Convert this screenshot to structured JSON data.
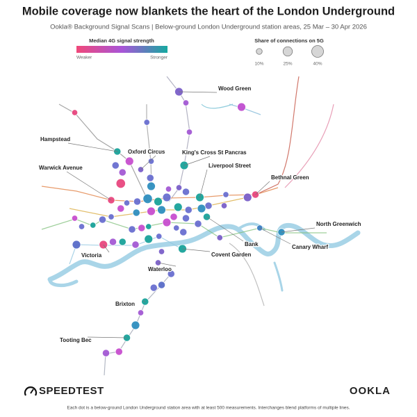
{
  "title": "Mobile coverage now blankets the heart of the London Underground",
  "subtitle": "Ookla® Background Signal Scans | Below-ground London Underground station areas, 25 Mar – 30 Apr 2026",
  "legend_color": {
    "title": "Median 4G signal strength",
    "low_label": "Weaker",
    "high_label": "Stronger",
    "colors": [
      "#f0487a",
      "#a855d8",
      "#16a9a0"
    ]
  },
  "legend_size": {
    "title": "Share of connections on 5G",
    "items": [
      {
        "value": 10,
        "label": "10%"
      },
      {
        "value": 25,
        "label": "25%"
      },
      {
        "value": 40,
        "label": "40%"
      }
    ]
  },
  "station_labels": [
    {
      "text": "Wood Green",
      "lon": -0.142,
      "lat": 51.644
    },
    {
      "text": "Hampstead",
      "lon": -0.213,
      "lat": 51.601
    },
    {
      "text": "Oxford Circus",
      "lon": -0.186,
      "lat": 51.588
    },
    {
      "text": "King's Cross St Pancras",
      "lon": -0.136,
      "lat": 51.591
    },
    {
      "text": "Liverpool Street",
      "lon": -0.118,
      "lat": 51.568
    },
    {
      "text": "Warwick Avenue",
      "lon": -0.22,
      "lat": 51.566
    },
    {
      "text": "Bethnal Green",
      "lon": -0.054,
      "lat": 51.57
    },
    {
      "text": "North Greenwich",
      "lon": -0.024,
      "lat": 51.543
    },
    {
      "text": "Bank",
      "lon": -0.11,
      "lat": 51.554
    },
    {
      "text": "Canary Wharf",
      "lon": -0.049,
      "lat": 51.546
    },
    {
      "text": "Victoria",
      "lon": -0.229,
      "lat": 51.534
    },
    {
      "text": "Covent Garden",
      "lon": -0.138,
      "lat": 51.531
    },
    {
      "text": "Waterloo",
      "lon": -0.166,
      "lat": 51.521
    },
    {
      "text": "Brixton",
      "lon": -0.181,
      "lat": 51.493
    },
    {
      "text": "Tooting Bec",
      "lon": -0.202,
      "lat": 51.467
    }
  ],
  "dots": [
    {
      "lon": -0.142,
      "lat": 51.644,
      "share": 20,
      "color": "#7b5fc9"
    },
    {
      "lon": -0.134,
      "lat": 51.636,
      "share": 10,
      "color": "#a45ad4"
    },
    {
      "lon": -0.07,
      "lat": 51.633,
      "share": 20,
      "color": "#c04fd0"
    },
    {
      "lon": -0.262,
      "lat": 51.629,
      "share": 10,
      "color": "#e8477f"
    },
    {
      "lon": -0.179,
      "lat": 51.622,
      "share": 10,
      "color": "#6a6fd0"
    },
    {
      "lon": -0.13,
      "lat": 51.615,
      "share": 10,
      "color": "#a45ad4"
    },
    {
      "lon": -0.213,
      "lat": 51.601,
      "share": 15,
      "color": "#1aa39a"
    },
    {
      "lon": -0.199,
      "lat": 51.594,
      "share": 20,
      "color": "#c84fcf"
    },
    {
      "lon": -0.186,
      "lat": 51.588,
      "share": 10,
      "color": "#7b5fc9"
    },
    {
      "lon": -0.174,
      "lat": 51.594,
      "share": 10,
      "color": "#6a6fd0"
    },
    {
      "lon": -0.215,
      "lat": 51.591,
      "share": 15,
      "color": "#6a6fd0"
    },
    {
      "lon": -0.207,
      "lat": 51.586,
      "share": 15,
      "color": "#a45ad4"
    },
    {
      "lon": -0.136,
      "lat": 51.591,
      "share": 20,
      "color": "#1aa39a"
    },
    {
      "lon": -0.209,
      "lat": 51.578,
      "share": 25,
      "color": "#e8477f"
    },
    {
      "lon": -0.175,
      "lat": 51.582,
      "share": 15,
      "color": "#6a6fd0"
    },
    {
      "lon": -0.174,
      "lat": 51.576,
      "share": 20,
      "color": "#2f8fbf"
    },
    {
      "lon": -0.22,
      "lat": 51.566,
      "share": 15,
      "color": "#e8477f"
    },
    {
      "lon": -0.209,
      "lat": 51.56,
      "share": 15,
      "color": "#c84fcf"
    },
    {
      "lon": -0.202,
      "lat": 51.564,
      "share": 10,
      "color": "#6a6fd0"
    },
    {
      "lon": -0.19,
      "lat": 51.565,
      "share": 15,
      "color": "#6a6fd0"
    },
    {
      "lon": -0.178,
      "lat": 51.567,
      "share": 25,
      "color": "#2f8fbf"
    },
    {
      "lon": -0.166,
      "lat": 51.565,
      "share": 20,
      "color": "#1aa39a"
    },
    {
      "lon": -0.156,
      "lat": 51.568,
      "share": 20,
      "color": "#6a6fd0"
    },
    {
      "lon": -0.154,
      "lat": 51.574,
      "share": 10,
      "color": "#a45ad4"
    },
    {
      "lon": -0.142,
      "lat": 51.575,
      "share": 10,
      "color": "#7b5fc9"
    },
    {
      "lon": -0.134,
      "lat": 51.572,
      "share": 15,
      "color": "#6a6fd0"
    },
    {
      "lon": -0.118,
      "lat": 51.568,
      "share": 20,
      "color": "#1aa39a"
    },
    {
      "lon": -0.108,
      "lat": 51.562,
      "share": 15,
      "color": "#6a6fd0"
    },
    {
      "lon": -0.09,
      "lat": 51.562,
      "share": 10,
      "color": "#7b5fc9"
    },
    {
      "lon": -0.088,
      "lat": 51.57,
      "share": 10,
      "color": "#6a6fd0"
    },
    {
      "lon": -0.063,
      "lat": 51.568,
      "share": 20,
      "color": "#7b5fc9"
    },
    {
      "lon": -0.054,
      "lat": 51.57,
      "share": 15,
      "color": "#e8477f"
    },
    {
      "lon": -0.162,
      "lat": 51.559,
      "share": 20,
      "color": "#2f8fbf"
    },
    {
      "lon": -0.143,
      "lat": 51.561,
      "share": 20,
      "color": "#1aa39a"
    },
    {
      "lon": -0.131,
      "lat": 51.559,
      "share": 15,
      "color": "#6a6fd0"
    },
    {
      "lon": -0.116,
      "lat": 51.56,
      "share": 20,
      "color": "#2f8fbf"
    },
    {
      "lon": -0.191,
      "lat": 51.557,
      "share": 15,
      "color": "#2f8fbf"
    },
    {
      "lon": -0.174,
      "lat": 51.558,
      "share": 20,
      "color": "#c84fcf"
    },
    {
      "lon": -0.148,
      "lat": 51.554,
      "share": 15,
      "color": "#c84fcf"
    },
    {
      "lon": -0.134,
      "lat": 51.553,
      "share": 15,
      "color": "#6a6fd0"
    },
    {
      "lon": -0.12,
      "lat": 51.549,
      "share": 15,
      "color": "#6a6fd0"
    },
    {
      "lon": -0.11,
      "lat": 51.554,
      "share": 15,
      "color": "#1aa39a"
    },
    {
      "lon": -0.262,
      "lat": 51.553,
      "share": 10,
      "color": "#c84fcf"
    },
    {
      "lon": -0.254,
      "lat": 51.547,
      "share": 10,
      "color": "#6a6fd0"
    },
    {
      "lon": -0.241,
      "lat": 51.548,
      "share": 10,
      "color": "#1aa39a"
    },
    {
      "lon": -0.23,
      "lat": 51.552,
      "share": 15,
      "color": "#6a6fd0"
    },
    {
      "lon": -0.22,
      "lat": 51.554,
      "share": 10,
      "color": "#6a6fd0"
    },
    {
      "lon": -0.196,
      "lat": 51.545,
      "share": 15,
      "color": "#6a6fd0"
    },
    {
      "lon": -0.185,
      "lat": 51.546,
      "share": 15,
      "color": "#c84fcf"
    },
    {
      "lon": -0.177,
      "lat": 51.547,
      "share": 10,
      "color": "#1aa39a"
    },
    {
      "lon": -0.156,
      "lat": 51.55,
      "share": 20,
      "color": "#c84fcf"
    },
    {
      "lon": -0.145,
      "lat": 51.546,
      "share": 10,
      "color": "#6a6fd0"
    },
    {
      "lon": -0.137,
      "lat": 51.543,
      "share": 15,
      "color": "#6a6fd0"
    },
    {
      "lon": -0.095,
      "lat": 51.539,
      "share": 10,
      "color": "#7b5fc9"
    },
    {
      "lon": -0.26,
      "lat": 51.534,
      "share": 20,
      "color": "#5a6dc9"
    },
    {
      "lon": -0.229,
      "lat": 51.534,
      "share": 20,
      "color": "#e8477f"
    },
    {
      "lon": -0.218,
      "lat": 51.536,
      "share": 15,
      "color": "#a45ad4"
    },
    {
      "lon": -0.207,
      "lat": 51.536,
      "share": 15,
      "color": "#1aa39a"
    },
    {
      "lon": -0.192,
      "lat": 51.534,
      "share": 15,
      "color": "#a45ad4"
    },
    {
      "lon": -0.177,
      "lat": 51.538,
      "share": 20,
      "color": "#1aa39a"
    },
    {
      "lon": -0.165,
      "lat": 51.54,
      "share": 10,
      "color": "#6a6fd0"
    },
    {
      "lon": -0.138,
      "lat": 51.531,
      "share": 20,
      "color": "#1aa39a"
    },
    {
      "lon": -0.049,
      "lat": 51.546,
      "share": 10,
      "color": "#3d7fc4"
    },
    {
      "lon": -0.024,
      "lat": 51.543,
      "share": 15,
      "color": "#2f8fbf"
    },
    {
      "lon": -0.162,
      "lat": 51.529,
      "share": 10,
      "color": "#7b5fc9"
    },
    {
      "lon": -0.166,
      "lat": 51.521,
      "share": 10,
      "color": "#7b5fc9"
    },
    {
      "lon": -0.151,
      "lat": 51.513,
      "share": 15,
      "color": "#6a6fd0"
    },
    {
      "lon": -0.162,
      "lat": 51.505,
      "share": 15,
      "color": "#5a6dc9"
    },
    {
      "lon": -0.171,
      "lat": 51.503,
      "share": 15,
      "color": "#6a6fd0"
    },
    {
      "lon": -0.181,
      "lat": 51.493,
      "share": 15,
      "color": "#1aa39a"
    },
    {
      "lon": -0.186,
      "lat": 51.485,
      "share": 10,
      "color": "#a45ad4"
    },
    {
      "lon": -0.192,
      "lat": 51.476,
      "share": 20,
      "color": "#2f8fbf"
    },
    {
      "lon": -0.202,
      "lat": 51.467,
      "share": 15,
      "color": "#1aa39a"
    },
    {
      "lon": -0.211,
      "lat": 51.457,
      "share": 15,
      "color": "#c84fcf"
    },
    {
      "lon": -0.226,
      "lat": 51.456,
      "share": 15,
      "color": "#a45ad4"
    }
  ],
  "footer": {
    "left_logo": "SPEEDTEST",
    "right_logo": "OOKLA",
    "note": "Each dot is a below-ground London Underground station area with at least 500 measurements. Interchanges blend platforms of multiple lines."
  }
}
